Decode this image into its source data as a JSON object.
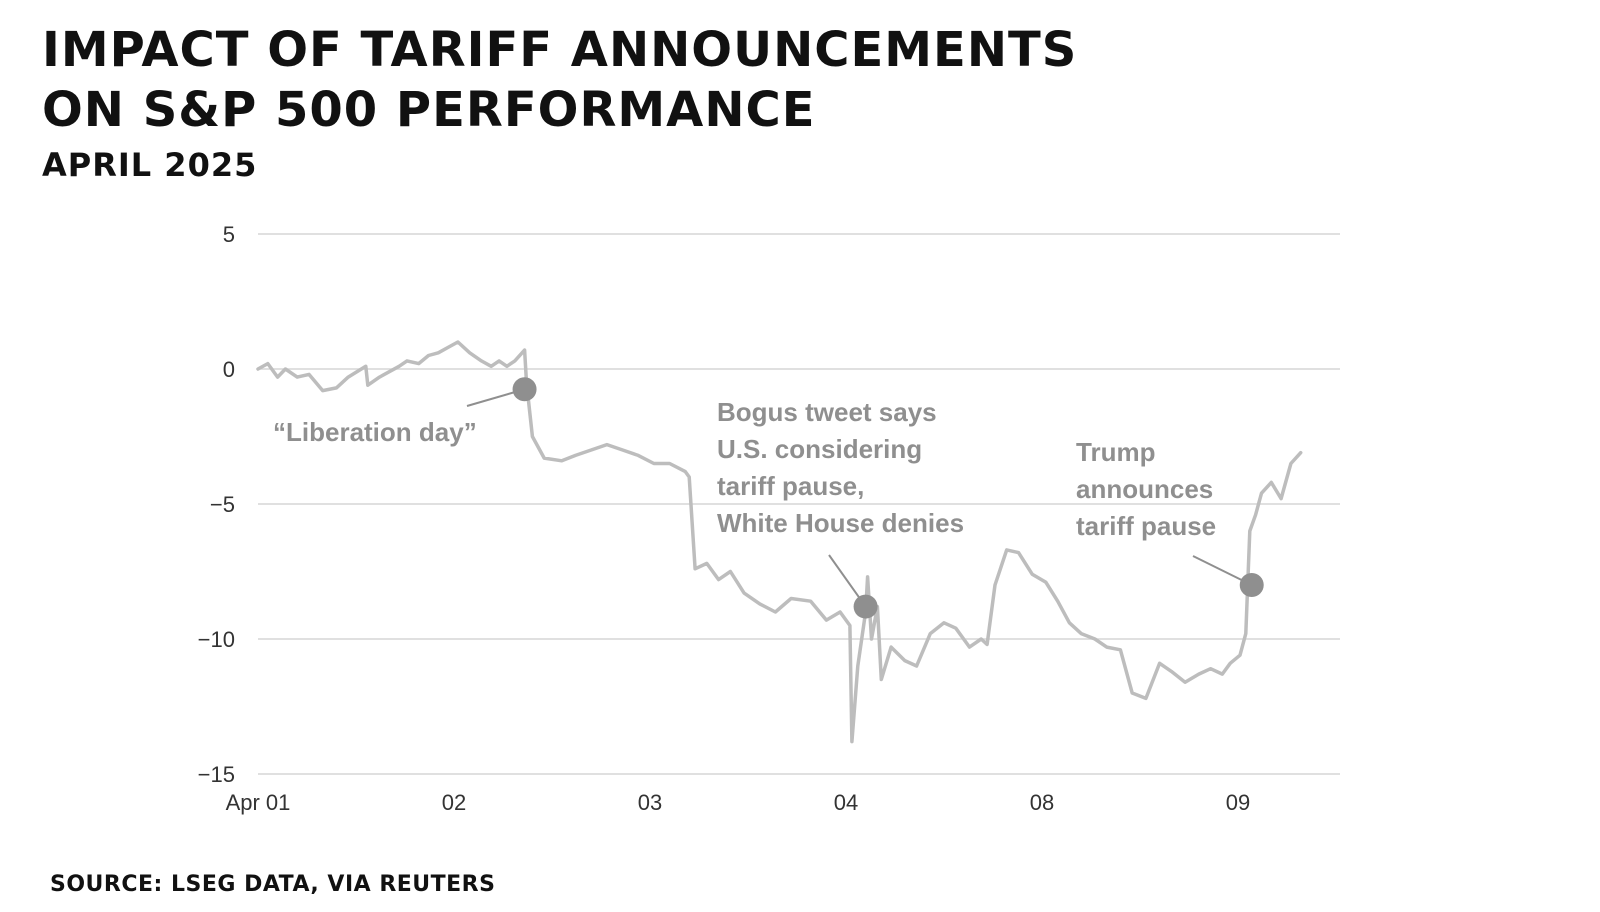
{
  "colors": {
    "line": "#bdbdbd",
    "marker": "#8f8f8f",
    "grid": "#d6d6d6",
    "annotation": "#8f8f8f",
    "text": "#111111"
  },
  "header": {
    "title_lines": [
      "IMPACT OF TARIFF ANNOUNCEMENTS",
      "ON S&P 500 PERFORMANCE"
    ],
    "subtitle": "APRIL 2025"
  },
  "source": "SOURCE: LSEG DATA, VIA REUTERS",
  "chart_data": {
    "type": "line",
    "title": "IMPACT OF TARIFF ANNOUNCEMENTS ON S&P 500 PERFORMANCE",
    "subtitle": "APRIL 2025",
    "xlabel": "",
    "ylabel": "",
    "x_ticks": [
      "Apr 01",
      "02",
      "03",
      "04",
      "08",
      "09"
    ],
    "y_ticks": [
      5,
      0,
      -5,
      -10,
      -15
    ],
    "y_tick_labels": [
      "5",
      "0",
      "−5",
      "−10",
      "−15"
    ],
    "ylim": [
      -15,
      5
    ],
    "xlim": [
      0,
      5.5
    ],
    "grid": true,
    "series": [
      {
        "values": [
          [
            0.0,
            0.0
          ],
          [
            0.05,
            0.2
          ],
          [
            0.1,
            -0.3
          ],
          [
            0.14,
            0.0
          ],
          [
            0.2,
            -0.3
          ],
          [
            0.26,
            -0.2
          ],
          [
            0.33,
            -0.8
          ],
          [
            0.4,
            -0.7
          ],
          [
            0.46,
            -0.3
          ],
          [
            0.55,
            0.1
          ],
          [
            0.56,
            -0.6
          ],
          [
            0.62,
            -0.3
          ],
          [
            0.72,
            0.1
          ],
          [
            0.76,
            0.3
          ],
          [
            0.82,
            0.2
          ],
          [
            0.87,
            0.5
          ],
          [
            0.92,
            0.6
          ],
          [
            0.97,
            0.8
          ],
          [
            1.02,
            1.0
          ],
          [
            1.08,
            0.6
          ],
          [
            1.14,
            0.3
          ],
          [
            1.19,
            0.1
          ],
          [
            1.23,
            0.3
          ],
          [
            1.27,
            0.1
          ],
          [
            1.31,
            0.3
          ],
          [
            1.36,
            0.7
          ],
          [
            1.37,
            -0.5
          ],
          [
            1.4,
            -2.5
          ],
          [
            1.46,
            -3.3
          ],
          [
            1.55,
            -3.4
          ],
          [
            1.62,
            -3.2
          ],
          [
            1.7,
            -3.0
          ],
          [
            1.78,
            -2.8
          ],
          [
            1.86,
            -3.0
          ],
          [
            1.94,
            -3.2
          ],
          [
            2.02,
            -3.5
          ],
          [
            2.1,
            -3.5
          ],
          [
            2.18,
            -3.8
          ],
          [
            2.2,
            -4.0
          ],
          [
            2.23,
            -7.4
          ],
          [
            2.29,
            -7.2
          ],
          [
            2.35,
            -7.8
          ],
          [
            2.41,
            -7.5
          ],
          [
            2.48,
            -8.3
          ],
          [
            2.56,
            -8.7
          ],
          [
            2.64,
            -9.0
          ],
          [
            2.72,
            -8.5
          ],
          [
            2.82,
            -8.6
          ],
          [
            2.9,
            -9.3
          ],
          [
            2.97,
            -9.0
          ],
          [
            3.02,
            -9.5
          ],
          [
            3.03,
            -13.8
          ],
          [
            3.06,
            -11.0
          ],
          [
            3.1,
            -9.0
          ],
          [
            3.11,
            -7.7
          ],
          [
            3.13,
            -10.0
          ],
          [
            3.16,
            -8.8
          ],
          [
            3.18,
            -11.5
          ],
          [
            3.23,
            -10.3
          ],
          [
            3.3,
            -10.8
          ],
          [
            3.36,
            -11.0
          ],
          [
            3.43,
            -9.8
          ],
          [
            3.5,
            -9.4
          ],
          [
            3.56,
            -9.6
          ],
          [
            3.63,
            -10.3
          ],
          [
            3.69,
            -10.0
          ],
          [
            3.72,
            -10.2
          ],
          [
            3.76,
            -8.0
          ],
          [
            3.82,
            -6.7
          ],
          [
            3.88,
            -6.8
          ],
          [
            3.95,
            -7.6
          ],
          [
            4.02,
            -7.9
          ],
          [
            4.08,
            -8.6
          ],
          [
            4.14,
            -9.4
          ],
          [
            4.2,
            -9.8
          ],
          [
            4.27,
            -10.0
          ],
          [
            4.33,
            -10.3
          ],
          [
            4.4,
            -10.4
          ],
          [
            4.46,
            -12.0
          ],
          [
            4.53,
            -12.2
          ],
          [
            4.6,
            -10.9
          ],
          [
            4.66,
            -11.2
          ],
          [
            4.73,
            -11.6
          ],
          [
            4.8,
            -11.3
          ],
          [
            4.86,
            -11.1
          ],
          [
            4.92,
            -11.3
          ],
          [
            4.96,
            -10.9
          ],
          [
            5.01,
            -10.6
          ],
          [
            5.04,
            -9.8
          ],
          [
            5.06,
            -6.0
          ],
          [
            5.09,
            -5.4
          ],
          [
            5.12,
            -4.6
          ],
          [
            5.17,
            -4.2
          ],
          [
            5.22,
            -4.8
          ],
          [
            5.27,
            -3.5
          ],
          [
            5.32,
            -3.1
          ]
        ]
      }
    ],
    "annotations": [
      {
        "text_lines": [
          "“Liberation day”"
        ],
        "x": 1.36,
        "y": -0.75
      },
      {
        "text_lines": [
          "Bogus tweet says",
          "U.S. considering",
          "tariff pause,",
          "White House denies"
        ],
        "x": 3.1,
        "y": -8.8
      },
      {
        "text_lines": [
          "Trump",
          "announces",
          "tariff pause"
        ],
        "x": 5.07,
        "y": -8.0
      }
    ]
  }
}
